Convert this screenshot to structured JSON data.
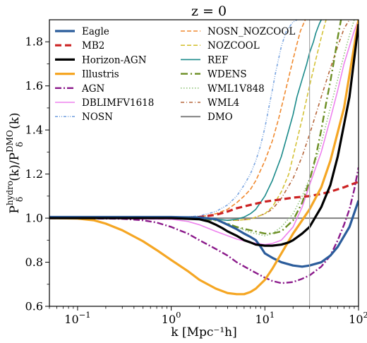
{
  "chart_data": {
    "type": "line",
    "title": "z = 0",
    "xlabel": "k [Mpc⁻¹h]",
    "ylabel_parts": {
      "P1": "P",
      "sub1": "δ",
      "sup1": "hydro",
      "mid": "(k)/",
      "P2": "P",
      "sub2": "δ",
      "sup2": "DMO",
      "end": "(k)"
    },
    "xscale": "log",
    "xlim": [
      0.05,
      100
    ],
    "ylim": [
      0.6,
      1.9
    ],
    "xticks": [
      {
        "value": 0.1,
        "base": "10",
        "exp": "−1"
      },
      {
        "value": 1,
        "base": "10",
        "exp": "0"
      },
      {
        "value": 10,
        "base": "10",
        "exp": "1"
      },
      {
        "value": 100,
        "base": "10",
        "exp": "2"
      }
    ],
    "yticks": [
      {
        "value": 0.6,
        "label": "0.6"
      },
      {
        "value": 0.8,
        "label": "0.8"
      },
      {
        "value": 1.0,
        "label": "1.0"
      },
      {
        "value": 1.2,
        "label": "1.2"
      },
      {
        "value": 1.4,
        "label": "1.4"
      },
      {
        "value": 1.6,
        "label": "1.6"
      },
      {
        "value": 1.8,
        "label": "1.8"
      }
    ],
    "vline_x": 30,
    "grid": false,
    "legend_placement": "upper-left, two columns",
    "series": [
      {
        "name": "Eagle",
        "color": "#2b5c9b",
        "width": 3.2,
        "dash": "",
        "x": [
          0.05,
          1,
          2,
          3,
          4,
          5,
          6,
          7,
          8,
          9,
          10,
          12,
          15,
          20,
          25,
          30,
          40,
          50,
          60,
          80,
          100
        ],
        "y": [
          1.005,
          1.005,
          1.003,
          0.995,
          0.97,
          0.95,
          0.93,
          0.915,
          0.9,
          0.87,
          0.84,
          0.82,
          0.8,
          0.785,
          0.78,
          0.785,
          0.8,
          0.83,
          0.87,
          0.96,
          1.08
        ]
      },
      {
        "name": "MB2",
        "color": "#cc2222",
        "width": 3.2,
        "dash": "9,5",
        "x": [
          0.05,
          1,
          2,
          3,
          4,
          5,
          7,
          10,
          15,
          20,
          30,
          40,
          50,
          70,
          100
        ],
        "y": [
          1.0,
          1.0,
          1.005,
          1.015,
          1.03,
          1.045,
          1.06,
          1.075,
          1.085,
          1.093,
          1.1,
          1.11,
          1.12,
          1.14,
          1.165
        ]
      },
      {
        "name": "Horizon-AGN",
        "color": "#000000",
        "width": 3.2,
        "dash": "",
        "x": [
          0.05,
          1,
          2,
          2.5,
          3,
          3.5,
          4,
          5,
          6,
          7,
          8,
          10,
          12,
          15,
          18,
          20,
          25,
          30,
          40,
          50,
          60,
          80,
          100
        ],
        "y": [
          1.0,
          1.0,
          0.995,
          0.985,
          0.97,
          0.955,
          0.94,
          0.92,
          0.9,
          0.89,
          0.88,
          0.875,
          0.875,
          0.88,
          0.89,
          0.9,
          0.93,
          0.96,
          1.05,
          1.15,
          1.28,
          1.55,
          1.88
        ]
      },
      {
        "name": "Illustris",
        "color": "#f5a623",
        "width": 3.2,
        "dash": "",
        "x": [
          0.05,
          0.1,
          0.15,
          0.2,
          0.3,
          0.5,
          0.7,
          1,
          1.5,
          2,
          3,
          4,
          5,
          6,
          7,
          8,
          10,
          12,
          15,
          20,
          25,
          30,
          40,
          50,
          70,
          100
        ],
        "y": [
          1.0,
          0.998,
          0.99,
          0.975,
          0.945,
          0.895,
          0.855,
          0.81,
          0.76,
          0.72,
          0.68,
          0.66,
          0.655,
          0.655,
          0.665,
          0.68,
          0.72,
          0.77,
          0.84,
          0.93,
          0.99,
          1.04,
          1.14,
          1.26,
          1.5,
          1.9
        ]
      },
      {
        "name": "AGN",
        "color": "#8b1a8b",
        "width": 2.4,
        "dash": "9,3,2,3",
        "x": [
          0.05,
          0.3,
          0.5,
          0.7,
          1,
          1.5,
          2,
          3,
          4,
          5,
          7,
          10,
          12,
          15,
          20,
          25,
          30,
          40,
          50,
          60,
          70,
          80,
          90,
          100
        ],
        "y": [
          1.0,
          0.997,
          0.99,
          0.98,
          0.96,
          0.93,
          0.9,
          0.86,
          0.83,
          0.8,
          0.765,
          0.73,
          0.715,
          0.705,
          0.71,
          0.725,
          0.74,
          0.78,
          0.83,
          0.9,
          0.97,
          1.04,
          1.13,
          1.23
        ]
      },
      {
        "name": "DBLIMFV1618",
        "color": "#ee82ee",
        "width": 1.6,
        "dash": "",
        "x": [
          0.05,
          1,
          1.5,
          2,
          3,
          4,
          5,
          7,
          10,
          12,
          15,
          20,
          25,
          30,
          40,
          50,
          60,
          70,
          80,
          90,
          100
        ],
        "y": [
          1.0,
          0.995,
          0.985,
          0.97,
          0.94,
          0.92,
          0.905,
          0.89,
          0.88,
          0.885,
          0.9,
          0.96,
          1.05,
          1.15,
          1.3,
          1.45,
          1.58,
          1.7,
          1.78,
          1.85,
          1.9
        ]
      },
      {
        "name": "NOSN",
        "color": "#7aa5e0",
        "width": 1.6,
        "dash": "4,2,1,2,1,2",
        "x": [
          0.05,
          1,
          2,
          3,
          4,
          5,
          6,
          7,
          8,
          9,
          10,
          11,
          12,
          13,
          15,
          17,
          20,
          22
        ],
        "y": [
          1.0,
          1.0,
          1.01,
          1.03,
          1.06,
          1.1,
          1.15,
          1.2,
          1.26,
          1.33,
          1.41,
          1.5,
          1.58,
          1.66,
          1.78,
          1.85,
          1.89,
          1.9
        ]
      },
      {
        "name": "NOSN_NOZCOOL",
        "color": "#f08a30",
        "width": 1.6,
        "dash": "6,3",
        "x": [
          0.05,
          1,
          2,
          3,
          4,
          5,
          6,
          7,
          8,
          10,
          12,
          14,
          16,
          18,
          20,
          22,
          24,
          27
        ],
        "y": [
          1.0,
          1.0,
          1.005,
          1.02,
          1.04,
          1.07,
          1.1,
          1.13,
          1.17,
          1.26,
          1.35,
          1.45,
          1.55,
          1.64,
          1.72,
          1.79,
          1.85,
          1.9
        ]
      },
      {
        "name": "NOZCOOL",
        "color": "#d4c237",
        "width": 1.6,
        "dash": "6,3",
        "x": [
          0.05,
          1,
          2,
          3,
          4,
          5,
          7,
          10,
          12,
          15,
          18,
          20,
          25,
          30,
          35,
          40,
          45
        ],
        "y": [
          1.0,
          1.0,
          1.0,
          0.995,
          0.99,
          0.99,
          0.995,
          1.02,
          1.05,
          1.12,
          1.2,
          1.28,
          1.45,
          1.6,
          1.72,
          1.82,
          1.9
        ]
      },
      {
        "name": "REF",
        "color": "#1a8a8a",
        "width": 1.6,
        "dash": "",
        "x": [
          0.05,
          1,
          2,
          3,
          4,
          5,
          6,
          7,
          8,
          10,
          12,
          15,
          18,
          20,
          22,
          25,
          28,
          30,
          33,
          35,
          38,
          40
        ],
        "y": [
          1.0,
          1.0,
          1.0,
          0.995,
          0.99,
          0.995,
          1.005,
          1.02,
          1.04,
          1.1,
          1.17,
          1.28,
          1.4,
          1.47,
          1.55,
          1.63,
          1.7,
          1.75,
          1.8,
          1.84,
          1.88,
          1.9
        ]
      },
      {
        "name": "WDENS",
        "color": "#6b8e23",
        "width": 2.4,
        "dash": "10,4,2,4",
        "x": [
          0.05,
          1,
          2,
          3,
          4,
          5,
          7,
          10,
          12,
          15,
          20,
          25,
          30,
          35,
          40,
          45,
          50,
          55,
          60,
          65
        ],
        "y": [
          1.0,
          1.0,
          0.998,
          0.99,
          0.975,
          0.96,
          0.945,
          0.93,
          0.93,
          0.94,
          0.99,
          1.07,
          1.17,
          1.28,
          1.4,
          1.52,
          1.62,
          1.72,
          1.82,
          1.9
        ]
      },
      {
        "name": "WML1V848",
        "color": "#90c37a",
        "width": 1.6,
        "dash": "1.5,2.5",
        "x": [
          0.05,
          1,
          2,
          3,
          4,
          5,
          7,
          10,
          12,
          15,
          20,
          25,
          30,
          40,
          50,
          60,
          70,
          80,
          90
        ],
        "y": [
          1.0,
          1.0,
          0.998,
          0.99,
          0.975,
          0.96,
          0.935,
          0.92,
          0.93,
          0.96,
          1.02,
          1.1,
          1.18,
          1.34,
          1.5,
          1.63,
          1.74,
          1.83,
          1.9
        ]
      },
      {
        "name": "WML4",
        "color": "#b5653a",
        "width": 1.6,
        "dash": "5,3,1,3",
        "x": [
          0.05,
          1,
          2,
          3,
          4,
          5,
          7,
          10,
          12,
          15,
          20,
          25,
          30,
          40,
          50,
          60,
          70,
          80
        ],
        "y": [
          1.0,
          1.0,
          1.0,
          0.995,
          0.99,
          0.99,
          0.995,
          1.02,
          1.04,
          1.09,
          1.18,
          1.28,
          1.38,
          1.55,
          1.68,
          1.78,
          1.86,
          1.9
        ]
      },
      {
        "name": "DMO",
        "color": "#808080",
        "width": 2,
        "dash": "",
        "x": [
          0.05,
          100
        ],
        "y": [
          1.0,
          1.0
        ]
      }
    ]
  }
}
